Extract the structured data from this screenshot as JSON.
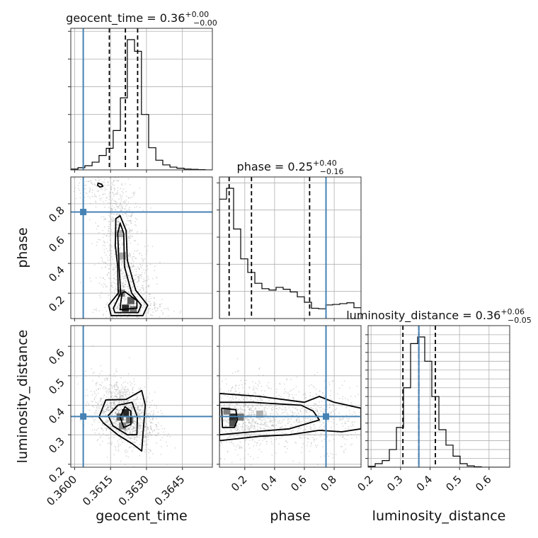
{
  "chart_data": {
    "type": "corner",
    "parameters": [
      "geocent_time",
      "phase",
      "luminosity_distance"
    ],
    "axis_labels": {
      "geocent_time": "geocent_time",
      "phase": "phase",
      "luminosity_distance": "luminosity_distance"
    },
    "ranges": {
      "geocent_time": [
        0.35984,
        0.36575
      ],
      "phase": [
        0.03,
        0.98
      ],
      "luminosity_distance": [
        0.19,
        0.67
      ]
    },
    "truths": {
      "geocent_time": 0.36036,
      "phase": 0.745,
      "luminosity_distance": 0.362
    },
    "titles": [
      {
        "param": "geocent_time",
        "text": "geocent_time = 0.36",
        "plus": "+0.00",
        "minus": "−0.00"
      },
      {
        "param": "phase",
        "text": "phase = 0.25",
        "plus": "+0.40",
        "minus": "−0.16"
      },
      {
        "param": "luminosity_distance",
        "text": "luminosity_distance = 0.36",
        "plus": "+0.06",
        "minus": "−0.05"
      }
    ],
    "ticks": {
      "geocent_time": {
        "values": [
          0.36,
          0.3615,
          0.363,
          0.3645
        ],
        "labels": [
          "0.3600",
          "0.3615",
          "0.3630",
          "0.3645"
        ]
      },
      "phase": {
        "values": [
          0.2,
          0.4,
          0.6,
          0.8
        ],
        "labels": [
          "0.2",
          "0.4",
          "0.6",
          "0.8"
        ]
      },
      "luminosity_distance": {
        "values": [
          0.2,
          0.3,
          0.4,
          0.5,
          0.6
        ],
        "labels": [
          "0.2",
          "0.3",
          "0.4",
          "0.5",
          "0.6"
        ]
      }
    },
    "quantiles": {
      "geocent_time": [
        0.36145,
        0.36212,
        0.36263
      ],
      "phase": [
        0.095,
        0.245,
        0.635
      ],
      "luminosity_distance": [
        0.308,
        0.362,
        0.418
      ]
    },
    "histograms": {
      "geocent_time": {
        "bin_edges": [
          0.35984,
          0.36014,
          0.36043,
          0.36073,
          0.36102,
          0.36132,
          0.36161,
          0.36191,
          0.3622,
          0.3625,
          0.36279,
          0.36309,
          0.36339,
          0.36368,
          0.36398,
          0.36427,
          0.36457,
          0.36486,
          0.36516,
          0.36545,
          0.36575
        ],
        "counts": [
          3,
          8,
          15,
          28,
          52,
          78,
          142,
          260,
          470,
          428,
          200,
          80,
          35,
          18,
          10,
          6,
          3,
          2,
          1,
          0
        ]
      },
      "phase": {
        "bin_edges": [
          0.03,
          0.0775,
          0.125,
          0.1725,
          0.22,
          0.2675,
          0.315,
          0.3625,
          0.41,
          0.4575,
          0.505,
          0.5525,
          0.6,
          0.6475,
          0.695,
          0.7425,
          0.79,
          0.8375,
          0.885,
          0.9325,
          0.98
        ],
        "counts": [
          440,
          480,
          330,
          220,
          170,
          130,
          110,
          105,
          115,
          108,
          98,
          80,
          60,
          38,
          36,
          50,
          52,
          55,
          58,
          40
        ]
      },
      "luminosity_distance": {
        "bin_edges": [
          0.19,
          0.214,
          0.238,
          0.262,
          0.286,
          0.31,
          0.334,
          0.358,
          0.382,
          0.406,
          0.43,
          0.454,
          0.478,
          0.502,
          0.526,
          0.55,
          0.574,
          0.598,
          0.622,
          0.646,
          0.67
        ],
        "counts": [
          2,
          8,
          15,
          40,
          90,
          180,
          280,
          295,
          240,
          160,
          85,
          50,
          25,
          8,
          3,
          1,
          0,
          0,
          0,
          0
        ]
      }
    },
    "scatter_clusters": {
      "phase_vs_geocent_time": [
        {
          "x": 0.36105,
          "y": 0.91,
          "sx": 0.00052,
          "sy": 0.05,
          "w": 0.09
        },
        {
          "x": 0.36185,
          "y": 0.66,
          "sx": 0.00042,
          "sy": 0.14,
          "w": 0.33
        },
        {
          "x": 0.3622,
          "y": 0.25,
          "sx": 0.00052,
          "sy": 0.13,
          "w": 0.45
        },
        {
          "x": 0.36255,
          "y": 0.09,
          "sx": 0.00068,
          "sy": 0.03,
          "w": 0.13
        }
      ],
      "luminosity_distance_vs_geocent_time": [
        {
          "x": 0.36205,
          "y": 0.37,
          "sx": 0.00065,
          "sy": 0.055,
          "w": 1.0,
          "tilt": -0.6
        }
      ],
      "luminosity_distance_vs_phase": [
        {
          "x": 0.2,
          "y": 0.36,
          "sx": 0.12,
          "sy": 0.06,
          "w": 0.55
        },
        {
          "x": 0.65,
          "y": 0.36,
          "sx": 0.2,
          "sy": 0.055,
          "w": 0.45
        }
      ]
    },
    "density_hotspots": {
      "phase_vs_geocent_time": [
        {
          "x": 0.36212,
          "y": 0.1,
          "v": 1.0
        },
        {
          "x": 0.36235,
          "y": 0.15,
          "v": 0.75
        },
        {
          "x": 0.36195,
          "y": 0.2,
          "v": 0.55
        },
        {
          "x": 0.36245,
          "y": 0.09,
          "v": 0.6
        },
        {
          "x": 0.3619,
          "y": 0.6,
          "v": 0.3
        },
        {
          "x": 0.362,
          "y": 0.45,
          "v": 0.35
        }
      ],
      "luminosity_distance_vs_geocent_time": [
        {
          "x": 0.36212,
          "y": 0.375,
          "v": 1.0
        },
        {
          "x": 0.3619,
          "y": 0.36,
          "v": 0.7
        },
        {
          "x": 0.3623,
          "y": 0.35,
          "v": 0.65
        },
        {
          "x": 0.362,
          "y": 0.33,
          "v": 0.5
        }
      ],
      "luminosity_distance_vs_phase": [
        {
          "x": 0.12,
          "y": 0.36,
          "v": 1.0
        },
        {
          "x": 0.12,
          "y": 0.34,
          "v": 0.8
        },
        {
          "x": 0.17,
          "y": 0.36,
          "v": 0.6
        },
        {
          "x": 0.08,
          "y": 0.38,
          "v": 0.55
        },
        {
          "x": 0.3,
          "y": 0.37,
          "v": 0.3
        }
      ]
    },
    "contours": {
      "phase_vs_geocent_time": [
        {
          "level": "outer",
          "points": [
            [
              0.36152,
              0.05
            ],
            [
              0.36285,
              0.05
            ],
            [
              0.36305,
              0.12
            ],
            [
              0.36255,
              0.22
            ],
            [
              0.3622,
              0.42
            ],
            [
              0.36215,
              0.62
            ],
            [
              0.3619,
              0.72
            ],
            [
              0.36172,
              0.7
            ],
            [
              0.3617,
              0.52
            ],
            [
              0.3618,
              0.38
            ],
            [
              0.36182,
              0.2
            ],
            [
              0.36142,
              0.12
            ]
          ]
        },
        {
          "level": "middle",
          "points": [
            [
              0.36168,
              0.07
            ],
            [
              0.36265,
              0.07
            ],
            [
              0.36278,
              0.12
            ],
            [
              0.36238,
              0.2
            ],
            [
              0.36208,
              0.38
            ],
            [
              0.36205,
              0.6
            ],
            [
              0.3619,
              0.67
            ],
            [
              0.3618,
              0.6
            ],
            [
              0.36185,
              0.4
            ],
            [
              0.36192,
              0.2
            ],
            [
              0.36162,
              0.1
            ]
          ]
        },
        {
          "level": "inner",
          "points": [
            [
              0.3619,
              0.09
            ],
            [
              0.3626,
              0.1
            ],
            [
              0.3626,
              0.15
            ],
            [
              0.3621,
              0.21
            ],
            [
              0.36198,
              0.2
            ],
            [
              0.36192,
              0.13
            ]
          ]
        },
        {
          "level": "island",
          "points": [
            [
              0.36098,
              0.938
            ],
            [
              0.36112,
              0.932
            ],
            [
              0.36118,
              0.918
            ],
            [
              0.36106,
              0.912
            ],
            [
              0.36096,
              0.924
            ]
          ]
        }
      ],
      "luminosity_distance_vs_geocent_time": [
        {
          "level": "outer",
          "points": [
            [
              0.36102,
              0.36
            ],
            [
              0.3613,
              0.418
            ],
            [
              0.36215,
              0.42
            ],
            [
              0.3628,
              0.45
            ],
            [
              0.36295,
              0.4
            ],
            [
              0.36285,
              0.3
            ],
            [
              0.3628,
              0.245
            ],
            [
              0.3624,
              0.27
            ],
            [
              0.3618,
              0.3
            ],
            [
              0.3612,
              0.34
            ]
          ]
        },
        {
          "level": "middle",
          "points": [
            [
              0.3614,
              0.365
            ],
            [
              0.3618,
              0.4
            ],
            [
              0.3624,
              0.41
            ],
            [
              0.36262,
              0.36
            ],
            [
              0.3626,
              0.3
            ],
            [
              0.3622,
              0.3
            ],
            [
              0.3616,
              0.33
            ]
          ]
        },
        {
          "level": "inner",
          "points": [
            [
              0.3619,
              0.36
            ],
            [
              0.3621,
              0.395
            ],
            [
              0.36235,
              0.38
            ],
            [
              0.36235,
              0.335
            ],
            [
              0.36205,
              0.325
            ]
          ]
        }
      ],
      "luminosity_distance_vs_phase": [
        {
          "level": "outer",
          "points": [
            [
              0.03,
              0.44
            ],
            [
              0.3,
              0.43
            ],
            [
              0.6,
              0.41
            ],
            [
              0.7,
              0.43
            ],
            [
              0.8,
              0.41
            ],
            [
              0.98,
              0.39
            ],
            [
              0.98,
              0.32
            ],
            [
              0.85,
              0.31
            ],
            [
              0.7,
              0.315
            ],
            [
              0.5,
              0.3
            ],
            [
              0.3,
              0.295
            ],
            [
              0.03,
              0.28
            ]
          ]
        },
        {
          "level": "middle",
          "points": [
            [
              0.03,
              0.41
            ],
            [
              0.25,
              0.41
            ],
            [
              0.58,
              0.4
            ],
            [
              0.66,
              0.38
            ],
            [
              0.7,
              0.35
            ],
            [
              0.5,
              0.32
            ],
            [
              0.25,
              0.31
            ],
            [
              0.03,
              0.3
            ]
          ]
        },
        {
          "level": "inner",
          "points": [
            [
              0.045,
              0.39
            ],
            [
              0.14,
              0.385
            ],
            [
              0.15,
              0.35
            ],
            [
              0.13,
              0.325
            ],
            [
              0.05,
              0.325
            ]
          ]
        }
      ]
    },
    "grid": true
  }
}
